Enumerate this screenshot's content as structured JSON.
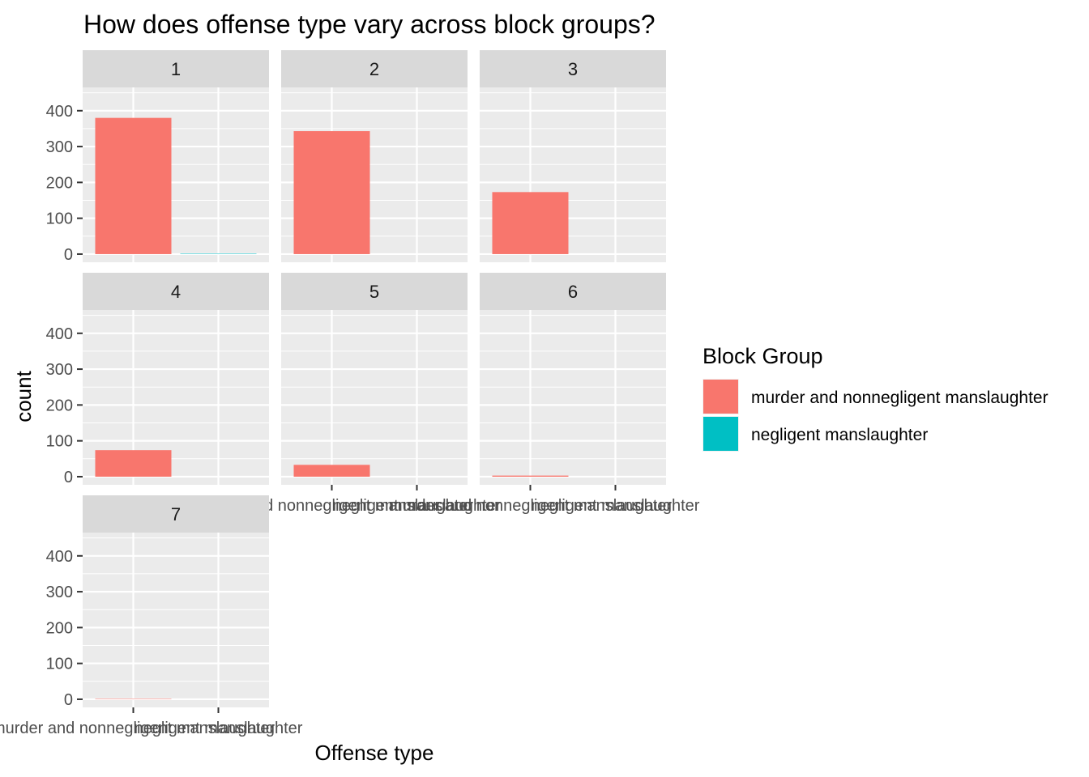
{
  "chart_data": {
    "type": "bar",
    "title": "How does offense type vary across block groups?",
    "xlabel": "Offense type",
    "ylabel": "count",
    "ylim": [
      0,
      480
    ],
    "yticks": [
      0,
      100,
      200,
      300,
      400
    ],
    "grid": true,
    "categories": [
      "murder and nonnegligent manslaughter",
      "negligent manslaughter"
    ],
    "legend": {
      "title": "Block Group",
      "placement": "right",
      "entries": [
        {
          "label": "murder and nonnegligent manslaughter",
          "color": "#F8766D"
        },
        {
          "label": "negligent manslaughter",
          "color": "#00BFC4"
        }
      ]
    },
    "facets": [
      {
        "label": "1",
        "values": [
          380,
          1
        ]
      },
      {
        "label": "2",
        "values": [
          343,
          0
        ]
      },
      {
        "label": "3",
        "values": [
          173,
          0
        ]
      },
      {
        "label": "4",
        "values": [
          74,
          0
        ]
      },
      {
        "label": "5",
        "values": [
          33,
          0
        ]
      },
      {
        "label": "6",
        "values": [
          3,
          0
        ]
      },
      {
        "label": "7",
        "values": [
          1,
          0
        ]
      }
    ]
  },
  "colors": {
    "panel_bg": "#EBEBEB",
    "strip_bg": "#D9D9D9",
    "grid": "#FFFFFF",
    "series": [
      "#F8766D",
      "#00BFC4"
    ]
  }
}
